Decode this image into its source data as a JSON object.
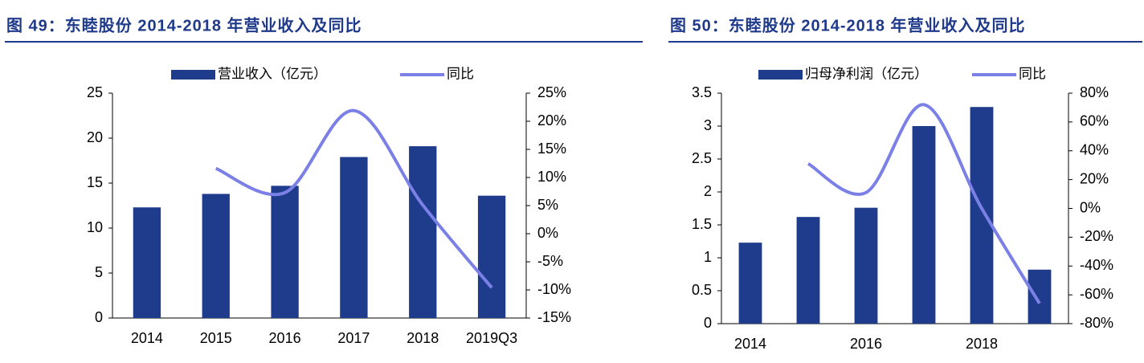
{
  "chart_data": [
    {
      "type": "bar",
      "title": "图 49：东睦股份 2014-2018 年营业收入及同比",
      "categories": [
        "2014",
        "2015",
        "2016",
        "2017",
        "2018",
        "2019Q3"
      ],
      "series": [
        {
          "name": "营业收入（亿元）",
          "color": "#1f3c8c",
          "values": [
            12.3,
            13.8,
            14.7,
            17.9,
            19.1,
            13.6
          ]
        },
        {
          "name": "同比",
          "color": "#7b80e6",
          "axis": "y2",
          "type": "line",
          "values": [
            null,
            11.6,
            7.3,
            21.9,
            5.1,
            -9.6
          ]
        }
      ],
      "ylim": [
        0,
        25
      ],
      "yticks": [
        0,
        5,
        10,
        15,
        20,
        25
      ],
      "y2lim": [
        -15,
        25
      ],
      "y2ticks": [
        {
          "value": -15,
          "label": "-15%"
        },
        {
          "value": -10,
          "label": "-10%"
        },
        {
          "value": -5,
          "label": "-5%"
        },
        {
          "value": 0,
          "label": "0%"
        },
        {
          "value": 5,
          "label": "5%"
        },
        {
          "value": 10,
          "label": "10%"
        },
        {
          "value": 15,
          "label": "15%"
        },
        {
          "value": 20,
          "label": "20%"
        },
        {
          "value": 25,
          "label": "25%"
        }
      ],
      "legend": "top"
    },
    {
      "type": "bar",
      "title": "图 50：东睦股份 2014-2018 年营业收入及同比",
      "categories": [
        "2014",
        null,
        "2016",
        null,
        "2018",
        null
      ],
      "series": [
        {
          "name": "归母净利润（亿元）",
          "color": "#1f3c8c",
          "values": [
            1.23,
            1.62,
            1.76,
            3.0,
            3.29,
            0.82
          ]
        },
        {
          "name": "同比",
          "color": "#7b80e6",
          "axis": "y2",
          "type": "line",
          "values": [
            null,
            31,
            11,
            72,
            0,
            -66
          ]
        }
      ],
      "ylim": [
        0,
        3.5
      ],
      "yticks": [
        0,
        0.5,
        1,
        1.5,
        2,
        2.5,
        3,
        3.5
      ],
      "y2lim": [
        -80,
        80
      ],
      "y2ticks": [
        {
          "value": -80,
          "label": "-80%"
        },
        {
          "value": -60,
          "label": "-60%"
        },
        {
          "value": -40,
          "label": "-40%"
        },
        {
          "value": -20,
          "label": "-20%"
        },
        {
          "value": 0,
          "label": "0%"
        },
        {
          "value": 20,
          "label": "20%"
        },
        {
          "value": 40,
          "label": "40%"
        },
        {
          "value": 60,
          "label": "60%"
        },
        {
          "value": 80,
          "label": "80%"
        }
      ],
      "legend": "top"
    }
  ]
}
